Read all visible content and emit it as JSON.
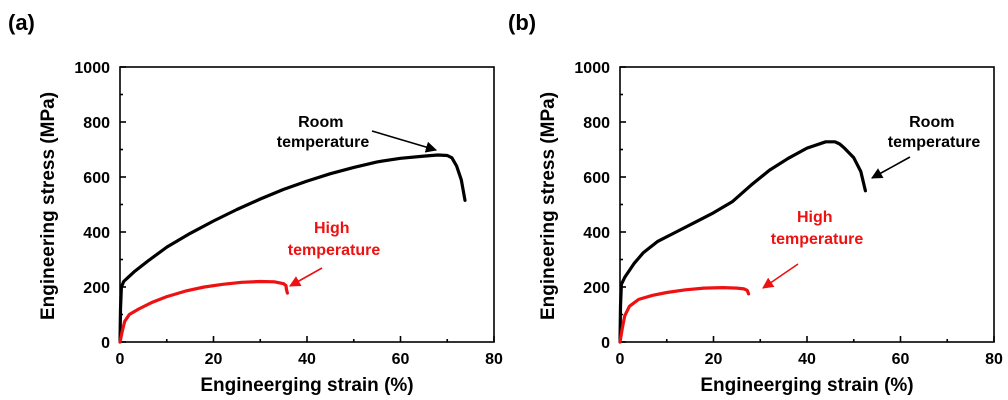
{
  "chart_data": [
    {
      "type": "line",
      "panel_label": "(a)",
      "xlabel": "Engineerging strain (%)",
      "ylabel": "Engineering stress (MPa)",
      "xlim": [
        0,
        80
      ],
      "ylim": [
        0,
        1000
      ],
      "xticks": [
        0,
        20,
        40,
        60,
        80
      ],
      "yticks": [
        0,
        200,
        400,
        600,
        800,
        1000
      ],
      "x_tick_labels": [
        "0",
        "20",
        "40",
        "60",
        "80"
      ],
      "y_tick_labels": [
        "0",
        "200",
        "400",
        "600",
        "800",
        "1000"
      ],
      "grid": false,
      "series": [
        {
          "name": "Room temperature",
          "color": "#000000",
          "points": [
            [
              0,
              0
            ],
            [
              0.1,
              120
            ],
            [
              0.3,
              200
            ],
            [
              0.8,
              220
            ],
            [
              3,
              255
            ],
            [
              6,
              295
            ],
            [
              10,
              345
            ],
            [
              15,
              395
            ],
            [
              20,
              440
            ],
            [
              25,
              482
            ],
            [
              30,
              520
            ],
            [
              35,
              555
            ],
            [
              40,
              585
            ],
            [
              45,
              612
            ],
            [
              50,
              635
            ],
            [
              55,
              655
            ],
            [
              60,
              668
            ],
            [
              65,
              676
            ],
            [
              68,
              680
            ],
            [
              70,
              678
            ],
            [
              71,
              670
            ],
            [
              72,
              640
            ],
            [
              73,
              590
            ],
            [
              73.8,
              515
            ]
          ]
        },
        {
          "name": "High temperature",
          "color": "#ee1111",
          "points": [
            [
              0,
              0
            ],
            [
              0.5,
              40
            ],
            [
              1,
              75
            ],
            [
              2,
              100
            ],
            [
              4,
              120
            ],
            [
              7,
              145
            ],
            [
              10,
              165
            ],
            [
              14,
              185
            ],
            [
              18,
              200
            ],
            [
              22,
              210
            ],
            [
              26,
              217
            ],
            [
              30,
              220
            ],
            [
              33,
              219
            ],
            [
              35,
              212
            ],
            [
              35.5,
              205
            ],
            [
              35.6,
              192
            ],
            [
              35.8,
              178
            ]
          ]
        }
      ],
      "annotations": [
        {
          "lines": [
            "Room",
            "temperature"
          ],
          "color": "#000000"
        },
        {
          "lines": [
            "High",
            "temperature"
          ],
          "color": "#ee1111"
        }
      ]
    },
    {
      "type": "line",
      "panel_label": "(b)",
      "xlabel": "Engineerging strain (%)",
      "ylabel": "Engineering stress (MPa)",
      "xlim": [
        0,
        80
      ],
      "ylim": [
        0,
        1000
      ],
      "xticks": [
        0,
        20,
        40,
        60,
        80
      ],
      "yticks": [
        0,
        200,
        400,
        600,
        800,
        1000
      ],
      "x_tick_labels": [
        "0",
        "20",
        "40",
        "60",
        "80"
      ],
      "y_tick_labels": [
        "0",
        "200",
        "400",
        "600",
        "800",
        "1000"
      ],
      "grid": false,
      "series": [
        {
          "name": "Room temperature",
          "color": "#000000",
          "points": [
            [
              0,
              0
            ],
            [
              0.1,
              130
            ],
            [
              0.3,
              210
            ],
            [
              1,
              235
            ],
            [
              3,
              285
            ],
            [
              5,
              325
            ],
            [
              8,
              365
            ],
            [
              12,
              400
            ],
            [
              16,
              435
            ],
            [
              20,
              470
            ],
            [
              24,
              510
            ],
            [
              28,
              570
            ],
            [
              32,
              625
            ],
            [
              36,
              668
            ],
            [
              40,
              705
            ],
            [
              44,
              728
            ],
            [
              46,
              728
            ],
            [
              47,
              720
            ],
            [
              48,
              705
            ],
            [
              50,
              670
            ],
            [
              51.5,
              620
            ],
            [
              52.5,
              550
            ]
          ]
        },
        {
          "name": "High temperature",
          "color": "#ee1111",
          "points": [
            [
              0,
              0
            ],
            [
              0.5,
              50
            ],
            [
              1,
              95
            ],
            [
              2,
              130
            ],
            [
              4,
              155
            ],
            [
              7,
              170
            ],
            [
              10,
              180
            ],
            [
              14,
              190
            ],
            [
              18,
              196
            ],
            [
              22,
              198
            ],
            [
              25,
              196
            ],
            [
              26.5,
              193
            ],
            [
              27.2,
              188
            ],
            [
              27.5,
              175
            ]
          ]
        }
      ],
      "annotations": [
        {
          "lines": [
            "Room",
            "temperature"
          ],
          "color": "#000000"
        },
        {
          "lines": [
            "High",
            "temperature"
          ],
          "color": "#ee1111"
        }
      ]
    }
  ]
}
